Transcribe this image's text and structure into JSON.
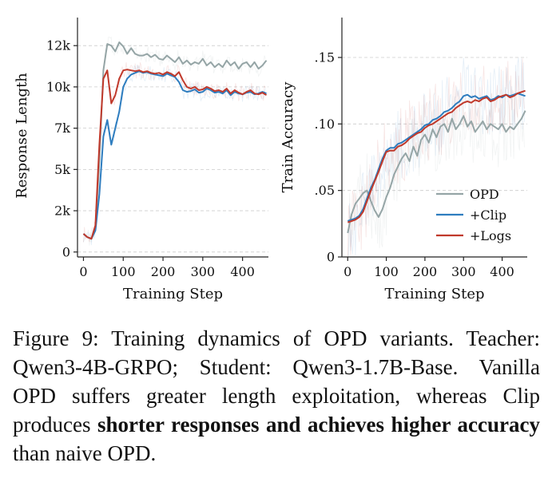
{
  "chart_data": [
    {
      "type": "line",
      "xlabel": "Training Step",
      "ylabel": "Response Length",
      "xlim": [
        -15,
        465
      ],
      "ylim": [
        -300,
        14200
      ],
      "xticks": [
        0,
        100,
        200,
        300,
        400
      ],
      "xtick_labels": [
        "0",
        "100",
        "200",
        "300",
        "400"
      ],
      "yticks": [
        0,
        2500,
        5000,
        7500,
        10000,
        12500
      ],
      "ytick_labels": [
        "0",
        "2k",
        "5k",
        "7k",
        "10k",
        "12k"
      ],
      "grid": "y-dashed",
      "legend": "none",
      "series": [
        {
          "name": "OPD",
          "color": "#95a5a6",
          "x": [
            0,
            10,
            20,
            30,
            40,
            50,
            60,
            70,
            80,
            90,
            100,
            110,
            120,
            130,
            140,
            150,
            160,
            170,
            180,
            190,
            200,
            210,
            220,
            230,
            240,
            250,
            260,
            270,
            280,
            290,
            300,
            310,
            320,
            330,
            340,
            350,
            360,
            370,
            380,
            390,
            400,
            410,
            420,
            430,
            440,
            450,
            460
          ],
          "y": [
            1100,
            900,
            800,
            1400,
            5500,
            11000,
            12600,
            12500,
            12150,
            12700,
            12450,
            12000,
            12350,
            12000,
            11900,
            11900,
            12000,
            11800,
            11950,
            11700,
            11650,
            11900,
            11700,
            11500,
            11800,
            11400,
            11600,
            11350,
            11500,
            11400,
            11700,
            11300,
            11500,
            11200,
            11400,
            11200,
            11600,
            11300,
            11500,
            11100,
            11400,
            11500,
            11200,
            11500,
            11100,
            11300,
            11600
          ]
        },
        {
          "name": "+Clip",
          "color": "#2e7dbf",
          "x": [
            0,
            10,
            20,
            30,
            40,
            50,
            60,
            70,
            80,
            90,
            100,
            110,
            120,
            130,
            140,
            150,
            160,
            170,
            180,
            190,
            200,
            210,
            220,
            230,
            240,
            250,
            260,
            270,
            280,
            290,
            300,
            310,
            320,
            330,
            340,
            350,
            360,
            370,
            380,
            390,
            400,
            410,
            420,
            430,
            440,
            450,
            460
          ],
          "y": [
            1100,
            900,
            800,
            1300,
            3500,
            7000,
            8000,
            6500,
            7500,
            8500,
            10000,
            10500,
            10750,
            10850,
            10950,
            10850,
            10900,
            10800,
            10750,
            10700,
            10650,
            10800,
            10700,
            10600,
            10300,
            9800,
            9700,
            9750,
            9850,
            9650,
            9700,
            9900,
            9800,
            9650,
            9700,
            9600,
            9800,
            9500,
            9700,
            9600,
            9550,
            9650,
            9700,
            9550,
            9600,
            9700,
            9600
          ]
        },
        {
          "name": "+Logs",
          "color": "#c0392b",
          "x": [
            0,
            10,
            20,
            30,
            40,
            50,
            60,
            70,
            80,
            90,
            100,
            110,
            120,
            130,
            140,
            150,
            160,
            170,
            180,
            190,
            200,
            210,
            220,
            230,
            240,
            250,
            260,
            270,
            280,
            290,
            300,
            310,
            320,
            330,
            340,
            350,
            360,
            370,
            380,
            390,
            400,
            410,
            420,
            430,
            440,
            450,
            460
          ],
          "y": [
            1100,
            900,
            800,
            1600,
            6500,
            10500,
            11000,
            9000,
            9500,
            10500,
            11000,
            11050,
            11000,
            10950,
            11000,
            10900,
            10950,
            10850,
            10800,
            10850,
            10750,
            10900,
            10800,
            10650,
            10900,
            10400,
            10000,
            9900,
            10000,
            9800,
            9850,
            10000,
            9900,
            9750,
            9800,
            9700,
            9900,
            9600,
            9800,
            9650,
            9550,
            9700,
            9800,
            9600,
            9550,
            9650,
            9500
          ]
        }
      ]
    },
    {
      "type": "line",
      "xlabel": "Training Step",
      "ylabel": "Train Accuracy",
      "xlim": [
        -15,
        465
      ],
      "ylim": [
        0,
        0.18
      ],
      "xticks": [
        0,
        100,
        200,
        300,
        400
      ],
      "xtick_labels": [
        "0",
        "100",
        "200",
        "300",
        "400"
      ],
      "yticks": [
        0,
        0.05,
        0.1,
        0.15
      ],
      "ytick_labels": [
        "0",
        ".05",
        ".10",
        ".15"
      ],
      "grid": "y-dashed",
      "legend": "bottom-right",
      "series": [
        {
          "name": "OPD",
          "color": "#95a5a6",
          "x": [
            0,
            10,
            20,
            30,
            40,
            50,
            60,
            70,
            80,
            90,
            100,
            110,
            120,
            130,
            140,
            150,
            160,
            170,
            180,
            190,
            200,
            210,
            220,
            230,
            240,
            250,
            260,
            270,
            280,
            290,
            300,
            310,
            320,
            330,
            340,
            350,
            360,
            370,
            380,
            390,
            400,
            410,
            420,
            430,
            440,
            450,
            460
          ],
          "y": [
            0.018,
            0.032,
            0.04,
            0.044,
            0.048,
            0.05,
            0.042,
            0.035,
            0.03,
            0.036,
            0.045,
            0.052,
            0.062,
            0.068,
            0.074,
            0.078,
            0.072,
            0.083,
            0.076,
            0.088,
            0.092,
            0.086,
            0.096,
            0.09,
            0.098,
            0.1,
            0.094,
            0.104,
            0.096,
            0.1,
            0.106,
            0.098,
            0.102,
            0.094,
            0.098,
            0.102,
            0.096,
            0.1,
            0.098,
            0.096,
            0.1,
            0.094,
            0.098,
            0.096,
            0.1,
            0.104,
            0.11
          ]
        },
        {
          "name": "+Clip",
          "color": "#2e7dbf",
          "x": [
            0,
            10,
            20,
            30,
            40,
            50,
            60,
            70,
            80,
            90,
            100,
            110,
            120,
            130,
            140,
            150,
            160,
            170,
            180,
            190,
            200,
            210,
            220,
            230,
            240,
            250,
            260,
            270,
            280,
            290,
            300,
            310,
            320,
            330,
            340,
            350,
            360,
            370,
            380,
            390,
            400,
            410,
            420,
            430,
            440,
            450,
            460
          ],
          "y": [
            0.027,
            0.028,
            0.029,
            0.031,
            0.036,
            0.044,
            0.052,
            0.058,
            0.066,
            0.074,
            0.08,
            0.082,
            0.082,
            0.085,
            0.086,
            0.088,
            0.09,
            0.092,
            0.094,
            0.096,
            0.099,
            0.1,
            0.103,
            0.104,
            0.106,
            0.109,
            0.11,
            0.112,
            0.115,
            0.117,
            0.121,
            0.122,
            0.12,
            0.121,
            0.119,
            0.12,
            0.121,
            0.118,
            0.119,
            0.121,
            0.12,
            0.122,
            0.121,
            0.122,
            0.123,
            0.122,
            0.121
          ]
        },
        {
          "name": "+Logs",
          "color": "#c0392b",
          "x": [
            0,
            10,
            20,
            30,
            40,
            50,
            60,
            70,
            80,
            90,
            100,
            110,
            120,
            130,
            140,
            150,
            160,
            170,
            180,
            190,
            200,
            210,
            220,
            230,
            240,
            250,
            260,
            270,
            280,
            290,
            300,
            310,
            320,
            330,
            340,
            350,
            360,
            370,
            380,
            390,
            400,
            410,
            420,
            430,
            440,
            450,
            460
          ],
          "y": [
            0.026,
            0.027,
            0.028,
            0.03,
            0.034,
            0.042,
            0.05,
            0.057,
            0.064,
            0.072,
            0.079,
            0.08,
            0.08,
            0.083,
            0.084,
            0.086,
            0.089,
            0.091,
            0.093,
            0.094,
            0.097,
            0.099,
            0.1,
            0.102,
            0.104,
            0.106,
            0.108,
            0.109,
            0.112,
            0.114,
            0.116,
            0.117,
            0.116,
            0.118,
            0.117,
            0.119,
            0.12,
            0.117,
            0.118,
            0.12,
            0.121,
            0.122,
            0.12,
            0.121,
            0.123,
            0.124,
            0.125
          ]
        }
      ]
    }
  ],
  "caption": {
    "parts": [
      {
        "text": "Figure 9: Training dynamics of OPD variants. Teacher: Qwen3-4B-GRPO; Student: Qwen3-1.7B-Base. Vanilla OPD suffers greater length exploitation, whereas Clip produces ",
        "bold": false
      },
      {
        "text": "shorter responses and achieves higher accuracy",
        "bold": true
      },
      {
        "text": " than naive OPD.",
        "bold": false
      }
    ]
  }
}
